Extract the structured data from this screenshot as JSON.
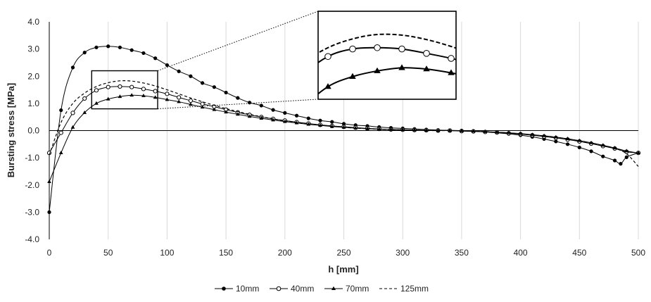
{
  "chart_data": {
    "type": "line",
    "xlabel": "h [mm]",
    "ylabel": "Bursting stress [MPa]",
    "xlim": [
      0,
      500
    ],
    "ylim": [
      -4.0,
      4.0
    ],
    "xticks": [
      0,
      50,
      100,
      150,
      200,
      250,
      300,
      350,
      400,
      450,
      500
    ],
    "yticks": [
      -4.0,
      -3.0,
      -2.0,
      -1.0,
      0.0,
      1.0,
      2.0,
      3.0,
      4.0
    ],
    "ytick_labels": [
      "-4.0",
      "-3.0",
      "-2.0",
      "-1.0",
      "0.0",
      "1.0",
      "2.0",
      "3.0",
      "4.0"
    ],
    "grid": "vertical",
    "legend": "bottom",
    "inset": {
      "x_range": [
        36,
        92
      ],
      "y_range": [
        0.8,
        2.2
      ],
      "placement": "top-center"
    },
    "series": [
      {
        "name": "10mm",
        "marker": "filled-circle",
        "line": "solid",
        "x": [
          0,
          10,
          20,
          30,
          40,
          50,
          60,
          70,
          80,
          90,
          100,
          110,
          120,
          130,
          140,
          150,
          160,
          170,
          180,
          190,
          200,
          210,
          220,
          230,
          240,
          250,
          260,
          270,
          280,
          290,
          300,
          310,
          320,
          330,
          340,
          350,
          360,
          370,
          380,
          390,
          400,
          410,
          420,
          430,
          440,
          450,
          460,
          470,
          480,
          485,
          490,
          500
        ],
        "y": [
          -3.0,
          0.75,
          2.32,
          2.87,
          3.06,
          3.1,
          3.06,
          2.96,
          2.85,
          2.66,
          2.41,
          2.18,
          2.0,
          1.75,
          1.6,
          1.4,
          1.2,
          1.03,
          0.92,
          0.76,
          0.65,
          0.55,
          0.45,
          0.37,
          0.32,
          0.25,
          0.2,
          0.17,
          0.13,
          0.1,
          0.08,
          0.06,
          0.04,
          0.02,
          0.01,
          0.0,
          -0.02,
          -0.05,
          -0.08,
          -0.12,
          -0.17,
          -0.23,
          -0.31,
          -0.4,
          -0.5,
          -0.62,
          -0.76,
          -0.95,
          -1.1,
          -1.22,
          -0.98,
          -0.82
        ]
      },
      {
        "name": "40mm",
        "marker": "open-circle",
        "line": "solid",
        "x": [
          0,
          10,
          20,
          30,
          40,
          50,
          60,
          70,
          80,
          90,
          100,
          110,
          120,
          130,
          140,
          150,
          160,
          170,
          180,
          190,
          200,
          210,
          220,
          230,
          240,
          250,
          260,
          270,
          280,
          290,
          300,
          310,
          320,
          330,
          340,
          350,
          360,
          370,
          380,
          390,
          400,
          410,
          420,
          430,
          440,
          450,
          460,
          470,
          480,
          490,
          500
        ],
        "y": [
          -0.82,
          -0.08,
          0.65,
          1.18,
          1.48,
          1.6,
          1.62,
          1.6,
          1.53,
          1.45,
          1.35,
          1.22,
          1.1,
          0.98,
          0.88,
          0.77,
          0.67,
          0.58,
          0.5,
          0.43,
          0.37,
          0.31,
          0.26,
          0.21,
          0.17,
          0.14,
          0.11,
          0.08,
          0.06,
          0.04,
          0.03,
          0.02,
          0.01,
          0.0,
          0.0,
          -0.02,
          -0.03,
          -0.05,
          -0.07,
          -0.1,
          -0.13,
          -0.17,
          -0.22,
          -0.27,
          -0.33,
          -0.4,
          -0.48,
          -0.57,
          -0.66,
          -0.78,
          -0.82
        ]
      },
      {
        "name": "70mm",
        "marker": "filled-triangle",
        "line": "solid",
        "x": [
          0,
          10,
          20,
          30,
          40,
          50,
          60,
          70,
          80,
          90,
          100,
          110,
          120,
          130,
          140,
          150,
          160,
          170,
          180,
          190,
          200,
          210,
          220,
          230,
          240,
          250,
          260,
          270,
          280,
          290,
          300,
          310,
          320,
          330,
          340,
          350,
          360,
          370,
          380,
          390,
          400,
          410,
          420,
          430,
          440,
          450,
          460,
          470,
          480,
          490,
          500
        ],
        "y": [
          -1.88,
          -0.82,
          0.12,
          0.66,
          1.0,
          1.16,
          1.25,
          1.3,
          1.28,
          1.22,
          1.14,
          1.06,
          0.96,
          0.86,
          0.77,
          0.68,
          0.6,
          0.52,
          0.45,
          0.39,
          0.33,
          0.28,
          0.23,
          0.19,
          0.15,
          0.12,
          0.09,
          0.07,
          0.05,
          0.04,
          0.03,
          0.02,
          0.01,
          0.0,
          0.0,
          -0.01,
          -0.02,
          -0.04,
          -0.06,
          -0.08,
          -0.11,
          -0.15,
          -0.19,
          -0.24,
          -0.3,
          -0.37,
          -0.45,
          -0.54,
          -0.64,
          -0.75,
          -0.82
        ]
      },
      {
        "name": "125mm",
        "marker": "none",
        "line": "dashed",
        "x": [
          0,
          10,
          20,
          30,
          40,
          50,
          60,
          70,
          80,
          90,
          100,
          110,
          120,
          130,
          140,
          150,
          160,
          170,
          180,
          190,
          200,
          210,
          220,
          230,
          240,
          250,
          260,
          270,
          280,
          290,
          300,
          310,
          320,
          330,
          340,
          350,
          360,
          370,
          380,
          390,
          400,
          410,
          420,
          430,
          440,
          450,
          460,
          470,
          480,
          490,
          500
        ],
        "y": [
          -0.9,
          0.3,
          1.0,
          1.38,
          1.62,
          1.76,
          1.83,
          1.82,
          1.75,
          1.64,
          1.5,
          1.35,
          1.2,
          1.06,
          0.93,
          0.81,
          0.7,
          0.6,
          0.51,
          0.43,
          0.36,
          0.3,
          0.25,
          0.2,
          0.16,
          0.12,
          0.09,
          0.07,
          0.05,
          0.03,
          0.02,
          0.01,
          0.0,
          0.0,
          0.0,
          -0.01,
          -0.02,
          -0.04,
          -0.06,
          -0.09,
          -0.12,
          -0.16,
          -0.2,
          -0.25,
          -0.31,
          -0.38,
          -0.46,
          -0.55,
          -0.65,
          -0.85,
          -1.32
        ]
      }
    ]
  }
}
